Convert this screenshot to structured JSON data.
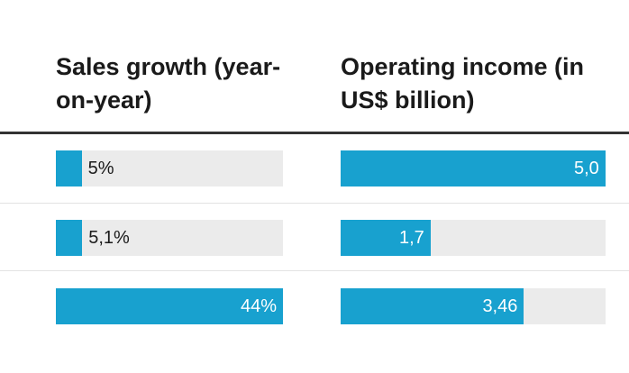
{
  "chart_data": {
    "type": "table",
    "columns": [
      {
        "header": "Sales growth (year-on-year)",
        "max": 44,
        "values": [
          5,
          5.1,
          44
        ],
        "labels": [
          "5%",
          "5,1%",
          "44%"
        ]
      },
      {
        "header": "Operating income (in US$ billion)",
        "max": 5.0,
        "values": [
          5.0,
          1.7,
          3.46
        ],
        "labels": [
          "5,0",
          "1,7",
          "3,46"
        ]
      }
    ],
    "colors": {
      "bar": "#18a1cf",
      "track": "#ebebeb"
    }
  }
}
